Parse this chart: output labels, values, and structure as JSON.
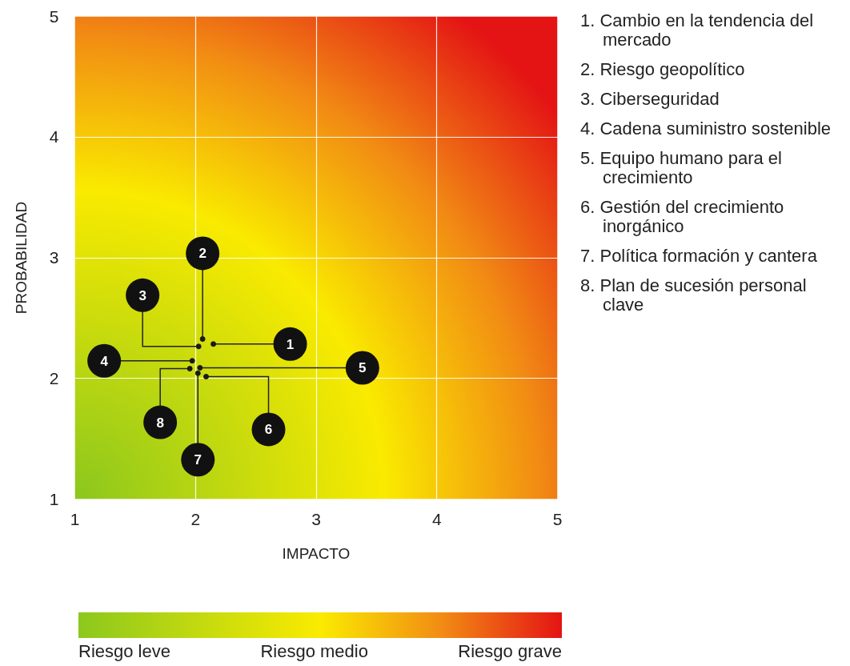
{
  "chart_data": {
    "type": "scatter",
    "xlabel": "IMPACTO",
    "ylabel": "PROBABILIDAD",
    "series": [
      {
        "color": "#1a1a1a",
        "x": [
          2.148,
          2.059,
          2.026,
          1.973,
          2.037,
          2.088,
          2.02,
          1.953
        ],
        "values": [
          2.285,
          2.327,
          2.265,
          2.146,
          2.088,
          2.015,
          2.043,
          2.081
        ]
      }
    ],
    "xlim": [
      1,
      5
    ],
    "ylim": [
      1,
      5
    ],
    "xticks": [
      1,
      2,
      3,
      4,
      5
    ],
    "yticks": [
      1,
      2,
      3,
      4,
      5
    ],
    "grid": true,
    "marker": "circle",
    "annotations": [
      {
        "text": "1",
        "x": 2.148,
        "y": 2.285
      },
      {
        "text": "2",
        "x": 2.059,
        "y": 2.327
      },
      {
        "text": "3",
        "x": 2.026,
        "y": 2.265
      },
      {
        "text": "4",
        "x": 1.973,
        "y": 2.146
      },
      {
        "text": "5",
        "x": 2.037,
        "y": 2.088
      },
      {
        "text": "6",
        "x": 2.088,
        "y": 2.015
      },
      {
        "text": "7",
        "x": 2.02,
        "y": 2.043
      },
      {
        "text": "8",
        "x": 1.953,
        "y": 2.081
      },
      "1. Cambio en la tendencia del mercado",
      "2. Riesgo geopolítico",
      "3. Ciberseguridad",
      "4. Cadena suministro sostenible",
      "5. Equipo humano para el crecimiento",
      "6. Gestión del crecimiento inorgánico",
      "7. Política formación y cantera",
      "8. Plan de sucesión personal clave",
      "Riesgo leve",
      "Riesgo medio",
      "Riesgo grave"
    ]
  }
}
